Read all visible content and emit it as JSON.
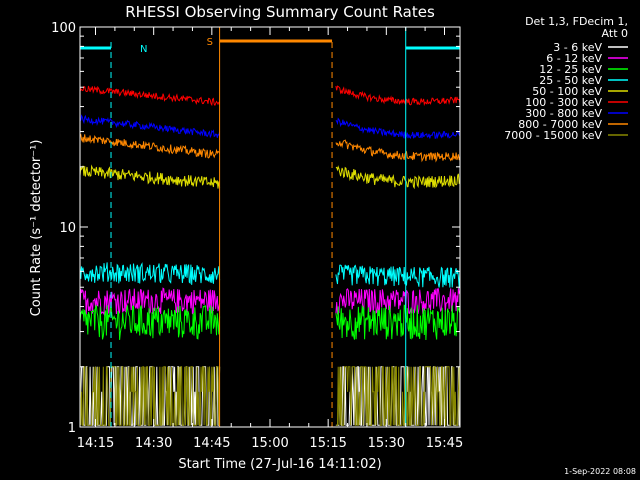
{
  "chart_data": {
    "type": "line",
    "title": "RHESSI Observing Summary Count Rates",
    "xlabel": "Start Time (27-Jul-16 14:11:02)",
    "ylabel": "Count Rate (s⁻¹ detector⁻¹)",
    "y_scale": "log",
    "ylim": [
      1,
      100
    ],
    "xlim": [
      "14:11",
      "15:49"
    ],
    "x_ticks": [
      "14:15",
      "14:30",
      "14:45",
      "15:00",
      "15:15",
      "15:30",
      "15:45"
    ],
    "y_ticks": [
      "1",
      "10",
      "100"
    ],
    "legend_header": [
      "Det 1,3, FDecim 1,",
      "Att 0"
    ],
    "legend_position": "top-right-outside",
    "timestamp": "1-Sep-2022 08:08",
    "series": [
      {
        "name": "3 - 6 keV",
        "color": "#ffffff",
        "level_start": 2.0,
        "level_end": 2.0,
        "noise": 0.35,
        "quantized": true
      },
      {
        "name": "6 - 12 keV",
        "color": "#ff00ff",
        "level_start": 4.3,
        "level_end": 4.3,
        "noise": 0.15,
        "quantized": true
      },
      {
        "name": "12 - 25 keV",
        "color": "#00ff00",
        "level_start": 3.4,
        "level_end": 3.4,
        "noise": 0.2,
        "quantized": true
      },
      {
        "name": "25 - 50 keV",
        "color": "#00ffff",
        "level_start": 6.0,
        "level_end": 5.6,
        "noise": 0.12,
        "quantized": true
      },
      {
        "name": "50 - 100 keV",
        "color": "#dddd00",
        "level_start": 17,
        "level_end": 16,
        "noise": 0.07
      },
      {
        "name": "100 - 300 keV",
        "color": "#ff0000",
        "level_start": 44,
        "level_end": 40,
        "noise": 0.04
      },
      {
        "name": "300 - 800 keV",
        "color": "#0000ff",
        "level_start": 31,
        "level_end": 27,
        "noise": 0.04
      },
      {
        "name": "800 - 7000 keV",
        "color": "#ff8800",
        "level_start": 25,
        "level_end": 21,
        "noise": 0.05
      },
      {
        "name": "7000 - 15000 keV",
        "color": "#888800",
        "level_start": 1.5,
        "level_end": 1.5,
        "noise": 0.3,
        "quantized": true
      }
    ],
    "data_segments": [
      {
        "start": "14:11",
        "end": "14:47"
      },
      {
        "start": "15:17",
        "end": "15:49"
      }
    ],
    "night_intervals": [
      {
        "label": "N",
        "start": "14:11",
        "end": "14:19",
        "color": "#00ffff"
      },
      {
        "label": "",
        "start": "15:35",
        "end": "15:49",
        "color": "#00ffff"
      }
    ],
    "saa_interval": {
      "label": "S",
      "start": "14:47",
      "end": "15:16",
      "color": "#ff8800"
    }
  }
}
